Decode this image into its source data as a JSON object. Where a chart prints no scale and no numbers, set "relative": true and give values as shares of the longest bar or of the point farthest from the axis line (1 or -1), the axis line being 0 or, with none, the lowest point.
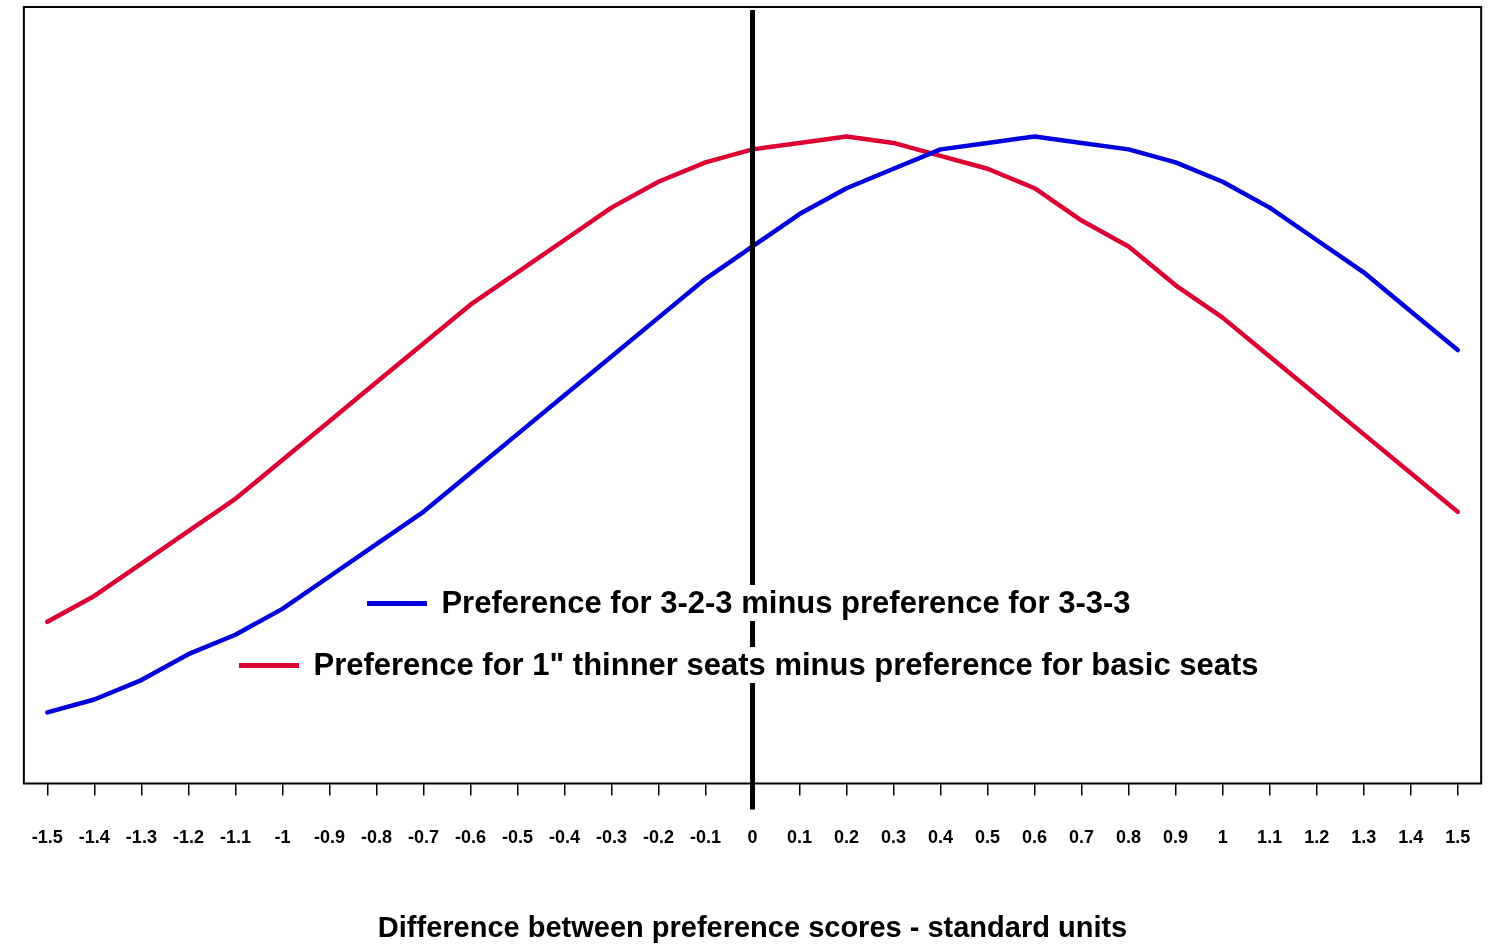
{
  "chart_data": {
    "type": "line",
    "relative": true,
    "xlabel": "Difference between preference scores - standard units",
    "x": [
      -1.5,
      -1.4,
      -1.3,
      -1.2,
      -1.1,
      -1.0,
      -0.9,
      -0.8,
      -0.7,
      -0.6,
      -0.5,
      -0.4,
      -0.3,
      -0.2,
      -0.1,
      0,
      0.1,
      0.2,
      0.3,
      0.4,
      0.5,
      0.6,
      0.7,
      0.8,
      0.9,
      1.0,
      1.1,
      1.2,
      1.3,
      1.4,
      1.5
    ],
    "xlim": [
      -1.55,
      1.55
    ],
    "xticks": [
      -1.5,
      -1.4,
      -1.3,
      -1.2,
      -1.1,
      -1,
      -0.9,
      -0.8,
      -0.7,
      -0.6,
      -0.5,
      -0.4,
      -0.3,
      -0.2,
      -0.1,
      0,
      0.1,
      0.2,
      0.3,
      0.4,
      0.5,
      0.6,
      0.7,
      0.8,
      0.9,
      1,
      1.1,
      1.2,
      1.3,
      1.4,
      1.5
    ],
    "series": [
      {
        "name": "Preference for 3-2-3 minus preference for 3-3-3",
        "color": "#0000dd",
        "values": [
          0.11,
          0.13,
          0.16,
          0.2,
          0.23,
          0.27,
          0.32,
          0.37,
          0.42,
          0.48,
          0.54,
          0.6,
          0.66,
          0.72,
          0.78,
          0.83,
          0.88,
          0.92,
          0.95,
          0.98,
          0.99,
          1.0,
          0.99,
          0.98,
          0.96,
          0.93,
          0.89,
          0.84,
          0.79,
          0.73,
          0.67
        ]
      },
      {
        "name": "Preference for 1\" thinner seats minus preference for basic seats",
        "color": "#dd0033",
        "values": [
          0.25,
          0.29,
          0.34,
          0.39,
          0.44,
          0.5,
          0.56,
          0.62,
          0.68,
          0.74,
          0.79,
          0.84,
          0.89,
          0.93,
          0.96,
          0.98,
          0.99,
          1.0,
          0.99,
          0.97,
          0.95,
          0.92,
          0.87,
          0.83,
          0.77,
          0.72,
          0.66,
          0.6,
          0.54,
          0.48,
          0.42
        ]
      }
    ],
    "ref_lines": [
      {
        "axis": "x",
        "value": 0,
        "color": "#000000"
      }
    ],
    "legend": "bottom",
    "marker": "none",
    "line_style": "solid"
  }
}
